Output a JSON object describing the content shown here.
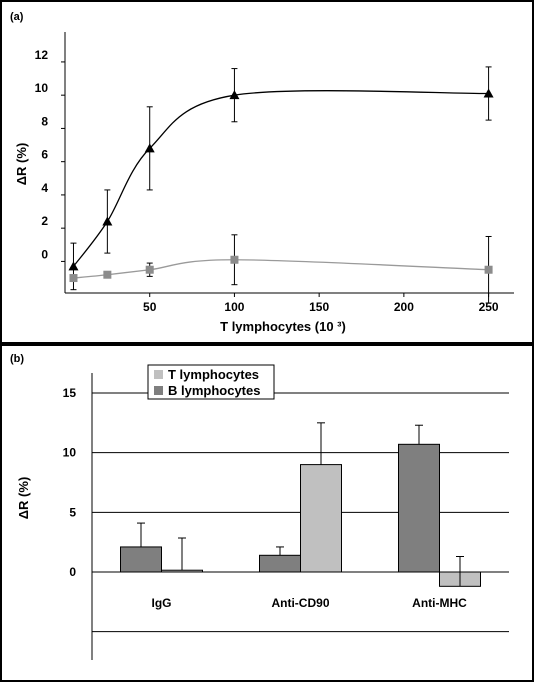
{
  "chart_data": [
    {
      "type": "line",
      "panel_label": "(a)",
      "xlabel": "T lymphocytes (10 ³)",
      "ylabel": "ΔR (%)",
      "x_ticks": [
        "50",
        "100",
        "150",
        "200",
        "250"
      ],
      "y_ticks": [
        "0",
        "2",
        "4",
        "6",
        "8",
        "10",
        "12"
      ],
      "xlim": [
        0,
        265
      ],
      "ylim": [
        -1.9,
        13.8
      ],
      "series": [
        {
          "marker": "triangle",
          "color": "#000000",
          "points": [
            {
              "x": 5,
              "y": -0.3,
              "err": 1.4
            },
            {
              "x": 25,
              "y": 2.4,
              "err": 1.9
            },
            {
              "x": 50,
              "y": 6.8,
              "err": 2.5
            },
            {
              "x": 100,
              "y": 10.0,
              "err": 1.6
            },
            {
              "x": 250,
              "y": 10.1,
              "err": 1.6
            }
          ]
        },
        {
          "marker": "square",
          "color": "#8c8c8c",
          "points": [
            {
              "x": 5,
              "y": -1.0,
              "err": 0
            },
            {
              "x": 25,
              "y": -0.8,
              "err": 0
            },
            {
              "x": 50,
              "y": -0.5,
              "err": 0.4
            },
            {
              "x": 100,
              "y": 0.1,
              "err": 1.5
            },
            {
              "x": 250,
              "y": -0.5,
              "err": 2.0
            }
          ]
        }
      ]
    },
    {
      "type": "bar",
      "panel_label": "(b)",
      "ylabel": "ΔR (%)",
      "categories": [
        "IgG",
        "Anti-CD90",
        "Anti-MHC"
      ],
      "y_ticks": [
        "15",
        "10",
        "5",
        "0"
      ],
      "ylim": [
        -5,
        15
      ],
      "grid": true,
      "legend_position": "top-left",
      "series": [
        {
          "name": "B lymphocytes",
          "color": "#7f7f7f",
          "values": [
            2.1,
            1.4,
            10.7
          ],
          "errors": [
            2.0,
            0.7,
            1.6
          ]
        },
        {
          "name": "T lymphocytes",
          "color": "#c0c0c0",
          "values": [
            0.15,
            9.0,
            -1.2
          ],
          "errors": [
            2.7,
            3.5,
            2.5
          ]
        }
      ],
      "legend": [
        "T lymphocytes",
        "B lymphocytes"
      ]
    }
  ]
}
